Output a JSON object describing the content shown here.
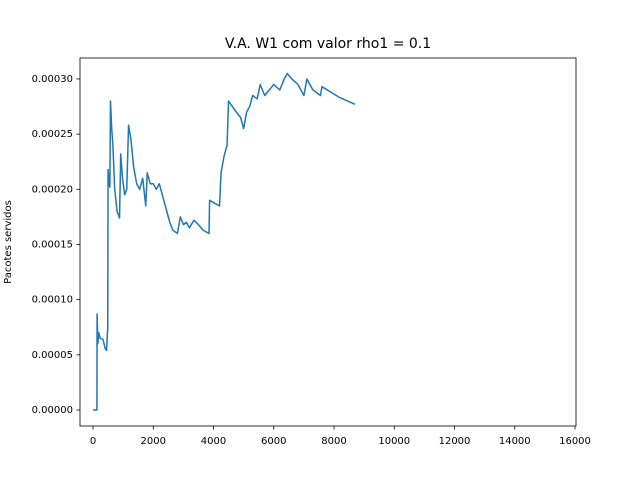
{
  "chart_data": {
    "type": "line",
    "title": "V.A. W1 com valor rho1 = 0.1",
    "ylabel": "Pacotes servidos",
    "x": [
      0,
      130,
      135,
      160,
      190,
      240,
      330,
      400,
      450,
      490,
      500,
      540,
      560,
      580,
      620,
      660,
      720,
      800,
      880,
      920,
      980,
      1050,
      1120,
      1180,
      1260,
      1350,
      1450,
      1550,
      1650,
      1750,
      1800,
      1900,
      2000,
      2100,
      2200,
      2350,
      2450,
      2550,
      2650,
      2800,
      2900,
      3000,
      3100,
      3200,
      3350,
      3500,
      3650,
      3850,
      3870,
      4000,
      4200,
      4250,
      4350,
      4450,
      4500,
      4700,
      4900,
      5000,
      5100,
      5200,
      5300,
      5450,
      5550,
      5700,
      5850,
      6000,
      6200,
      6350,
      6450,
      6600,
      6800,
      7000,
      7100,
      7300,
      7550,
      7600,
      7900,
      8200,
      8700
    ],
    "values": [
      0,
      0,
      8.7e-05,
      6e-05,
      7e-05,
      6.5e-05,
      6.4e-05,
      5.6e-05,
      5.4e-05,
      7.5e-05,
      0.000218,
      0.000205,
      0.000202,
      0.00028,
      0.000255,
      0.00024,
      0.0002,
      0.00018,
      0.000174,
      0.000232,
      0.00021,
      0.000195,
      0.0002,
      0.000258,
      0.000245,
      0.00022,
      0.000205,
      0.0002,
      0.00021,
      0.000185,
      0.000215,
      0.000205,
      0.000205,
      0.0002,
      0.000205,
      0.00019,
      0.00018,
      0.00017,
      0.000163,
      0.00016,
      0.000175,
      0.000168,
      0.00017,
      0.000165,
      0.000172,
      0.000168,
      0.000163,
      0.00016,
      0.00019,
      0.000188,
      0.000185,
      0.000215,
      0.00023,
      0.00024,
      0.00028,
      0.000272,
      0.000265,
      0.000255,
      0.00027,
      0.000275,
      0.000285,
      0.000282,
      0.000295,
      0.000285,
      0.00029,
      0.000295,
      0.00029,
      0.0003,
      0.000305,
      0.0003,
      0.000295,
      0.000285,
      0.0003,
      0.00029,
      0.000285,
      0.000293,
      0.000288,
      0.000283,
      0.000277
    ],
    "color": "#1f77b4",
    "xlim": [
      -432,
      16033
    ],
    "xticks": [
      0,
      2000,
      4000,
      6000,
      8000,
      10000,
      12000,
      14000,
      16000
    ],
    "ylim": [
      -1.45e-05,
      0.000319
    ],
    "yticks": [
      {
        "value": 0,
        "label": "0.00000"
      },
      {
        "value": 5e-05,
        "label": "0.00005"
      },
      {
        "value": 0.0001,
        "label": "0.00010"
      },
      {
        "value": 0.00015,
        "label": "0.00015"
      },
      {
        "value": 0.0002,
        "label": "0.00020"
      },
      {
        "value": 0.00025,
        "label": "0.00025"
      },
      {
        "value": 0.0003,
        "label": "0.00030"
      }
    ],
    "grid": false
  }
}
